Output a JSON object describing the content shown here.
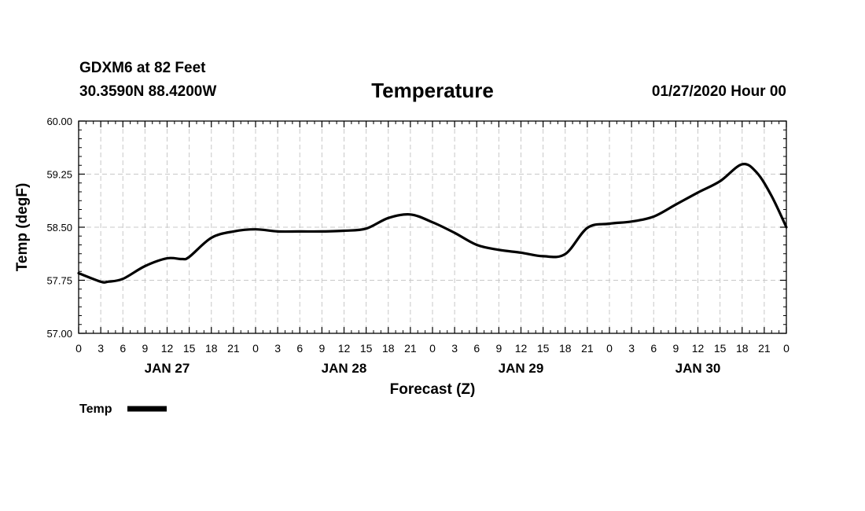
{
  "header": {
    "station": "GDXM6 at 82 Feet",
    "coords": "30.3590N 88.4200W",
    "title": "Temperature",
    "timestamp": "01/27/2020 Hour 00"
  },
  "chart_data": {
    "type": "line",
    "title": "Temperature",
    "xlabel": "Forecast (Z)",
    "ylabel": "Temp (degF)",
    "ylim": [
      57.0,
      60.0
    ],
    "xlim": [
      0,
      96
    ],
    "x_unit": "forecast hours from 01/27/2020 00Z",
    "yticks": [
      "57.00",
      "57.75",
      "58.50",
      "59.25",
      "60.00"
    ],
    "ytick_values": [
      57.0,
      57.75,
      58.5,
      59.25,
      60.0
    ],
    "xtick_labels": [
      "0",
      "3",
      "6",
      "9",
      "12",
      "15",
      "18",
      "21",
      "0",
      "3",
      "6",
      "9",
      "12",
      "15",
      "18",
      "21",
      "0",
      "3",
      "6",
      "9",
      "12",
      "15",
      "18",
      "21",
      "0",
      "3",
      "6",
      "9",
      "12",
      "15",
      "18",
      "21",
      "0"
    ],
    "day_labels": [
      {
        "label": "JAN 27",
        "hour": 12
      },
      {
        "label": "JAN 28",
        "hour": 36
      },
      {
        "label": "JAN 29",
        "hour": 60
      },
      {
        "label": "JAN 30",
        "hour": 84
      }
    ],
    "grid": true,
    "legend": {
      "label": "Temp",
      "placement": "bottom-left"
    },
    "series": [
      {
        "name": "Temp",
        "color": "#000000",
        "x": [
          0,
          3,
          4,
          6,
          9,
          12,
          14,
          15,
          18,
          21,
          24,
          27,
          30,
          33,
          36,
          39,
          42,
          45,
          48,
          51,
          54,
          57,
          60,
          63,
          66,
          69,
          72,
          75,
          78,
          81,
          84,
          87,
          90,
          92,
          94,
          96
        ],
        "values": [
          57.85,
          57.73,
          57.73,
          57.77,
          57.95,
          58.06,
          58.05,
          58.08,
          58.35,
          58.44,
          58.47,
          58.44,
          58.44,
          58.44,
          58.45,
          58.48,
          58.63,
          58.68,
          58.57,
          58.42,
          58.25,
          58.18,
          58.14,
          58.09,
          58.12,
          58.49,
          58.55,
          58.58,
          58.65,
          58.82,
          58.99,
          59.15,
          59.39,
          59.27,
          58.94,
          58.5
        ]
      }
    ]
  }
}
